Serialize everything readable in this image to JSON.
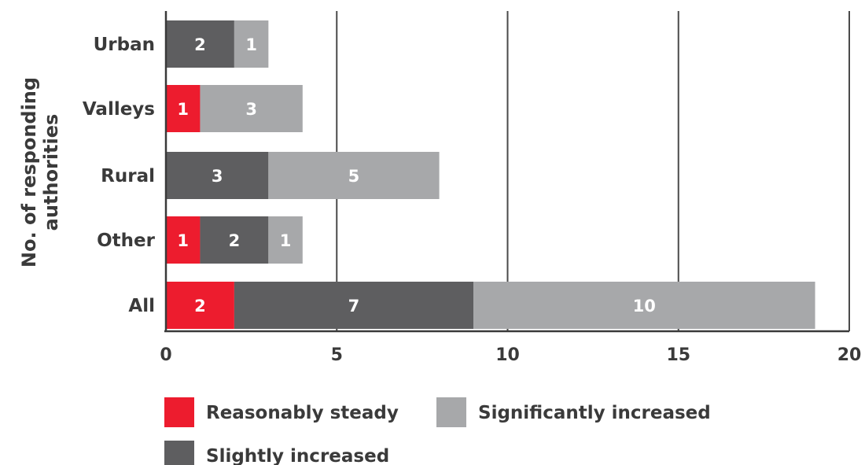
{
  "chart_data": {
    "type": "bar",
    "orientation": "horizontal",
    "stacked": true,
    "ylabel": "No. of responding authorities",
    "xlabel": "",
    "categories": [
      "Urban",
      "Valleys",
      "Rural",
      "Other",
      "All"
    ],
    "series": [
      {
        "name": "Reasonably steady",
        "color": "#ed1c2e",
        "values": [
          0,
          1,
          0,
          1,
          2
        ]
      },
      {
        "name": "Slightly increased",
        "color": "#5e5e60",
        "values": [
          2,
          0,
          3,
          2,
          7
        ]
      },
      {
        "name": "Significantly increased",
        "color": "#a7a8aa",
        "values": [
          1,
          3,
          5,
          1,
          10
        ]
      }
    ],
    "xlim": [
      0,
      20
    ],
    "xticks": [
      0,
      5,
      10,
      15,
      20
    ],
    "xtick_labels": [
      "0",
      "5",
      "10",
      "15",
      "20"
    ],
    "grid": "vertical",
    "legend": "bottom"
  }
}
